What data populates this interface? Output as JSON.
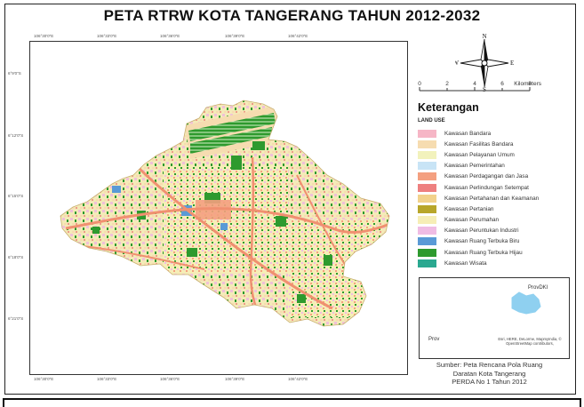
{
  "map": {
    "title": "PETA RTRW KOTA TANGERANG TAHUN 2012-2032",
    "top_coords": [
      "106°30'0\"E",
      "106°33'0\"E",
      "106°36'0\"E",
      "106°39'0\"E",
      "106°42'0\"E"
    ],
    "bottom_coords": [
      "106°30'0\"E",
      "106°33'0\"E",
      "106°36'0\"E",
      "106°39'0\"E",
      "106°42'0\"E"
    ],
    "left_coords": [
      "6°9'0\"S",
      "6°12'0\"S",
      "6°15'0\"S",
      "6°18'0\"S",
      "6°21'0\"S"
    ],
    "right_coords": [
      "6°9'0\"S",
      "6°12'0\"S",
      "6°15'0\"S",
      "6°18'0\"S",
      "6°21'0\"S"
    ]
  },
  "compass": {
    "n": "N",
    "s": "S",
    "e": "E",
    "w": "W"
  },
  "scale": {
    "ticks": [
      "0",
      "2",
      "4",
      "6",
      "8"
    ],
    "unit": "Kilometers"
  },
  "legend": {
    "title": "Keterangan",
    "subtitle": "LAND USE",
    "items": [
      {
        "label": "Kawasan Bandara",
        "color": "#f6b6c6"
      },
      {
        "label": "Kawasan Fasilitas Bandara",
        "color": "#f6dcb0"
      },
      {
        "label": "Kawasan Pelayanan Umum",
        "color": "#f2f2bc"
      },
      {
        "label": "Kawasan Pemerintahan",
        "color": "#c8e4f6"
      },
      {
        "label": "Kawasan Perdagangan dan Jasa",
        "color": "#f4a080"
      },
      {
        "label": "Kawasan Perlindungan Setempat",
        "color": "#ee8080"
      },
      {
        "label": "Kawasan Pertahanan dan Keamanan",
        "color": "#f2d28c"
      },
      {
        "label": "Kawasan Pertanian",
        "color": "#b8a62a"
      },
      {
        "label": "Kawasan Perumahan",
        "color": "#f6eeb6"
      },
      {
        "label": "Kawasan Peruntukan Industri",
        "color": "#f0bce4"
      },
      {
        "label": "Kawasan Ruang Terbuka Biru",
        "color": "#5a9ad6"
      },
      {
        "label": "Kawasan Ruang Terbuka Hijau",
        "color": "#2e9a2e"
      },
      {
        "label": "Kawasan Wisata",
        "color": "#2aa890"
      }
    ]
  },
  "inset": {
    "label_dki": "ProvDKI",
    "label_prov": "Prov",
    "attribution": "Esri, HERE, DeLorme, MapmyIndia, © OpenStreetMap contributors,"
  },
  "source": {
    "line1": "Sumber: Peta Rencana Pola Ruang",
    "line2": "Daratan Kota Tangerang",
    "line3": "PERDA No 1 Tahun 2012"
  }
}
